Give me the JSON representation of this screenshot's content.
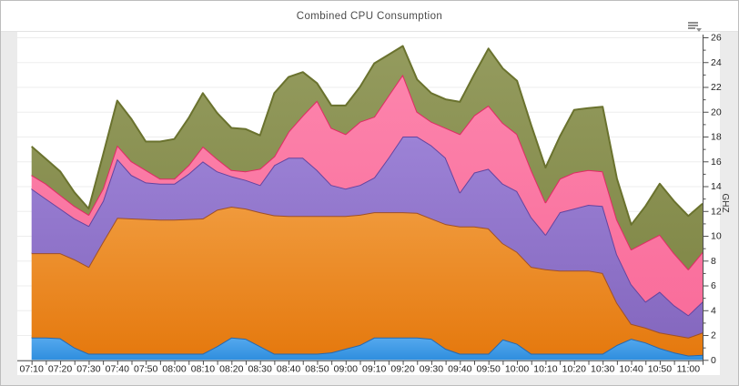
{
  "page": {
    "title": "Combined CPU Consumption"
  },
  "menu": {
    "icon": "context-menu-icon"
  },
  "chart_data": {
    "type": "area",
    "stacked": true,
    "title": "Combined CPU Consumption",
    "xlabel": "",
    "ylabel": "GHZ",
    "ylim": [
      0,
      26
    ],
    "y_tick_step": 2,
    "y_minor_tick_step": 1,
    "y_axis_side": "right",
    "grid": true,
    "legend": "none",
    "x": [
      "07:10",
      "07:15",
      "07:20",
      "07:25",
      "07:30",
      "07:35",
      "07:40",
      "07:45",
      "07:50",
      "07:55",
      "08:00",
      "08:05",
      "08:10",
      "08:15",
      "08:20",
      "08:25",
      "08:30",
      "08:35",
      "08:40",
      "08:45",
      "08:50",
      "08:55",
      "09:00",
      "09:05",
      "09:10",
      "09:15",
      "09:20",
      "09:25",
      "09:30",
      "09:35",
      "09:40",
      "09:45",
      "09:50",
      "09:55",
      "10:00",
      "10:05",
      "10:10",
      "10:15",
      "10:20",
      "10:25",
      "10:30",
      "10:35",
      "10:40",
      "10:45",
      "10:50",
      "10:55",
      "11:00",
      "11:05"
    ],
    "x_tick_labels": [
      "07:10",
      "07:20",
      "07:30",
      "07:40",
      "07:50",
      "08:00",
      "08:10",
      "08:20",
      "08:30",
      "08:40",
      "08:50",
      "09:00",
      "09:10",
      "09:20",
      "09:30",
      "09:40",
      "09:50",
      "10:00",
      "10:10",
      "10:20",
      "10:30",
      "10:40",
      "10:50",
      "11:00"
    ],
    "y_tick_labels": [
      "0",
      "2",
      "4",
      "6",
      "8",
      "10",
      "12",
      "14",
      "16",
      "18",
      "20",
      "22",
      "24",
      "26"
    ],
    "series": [
      {
        "name": "series-blue",
        "color": "#3e9be6",
        "color_top": "#55a9ee",
        "color_bottom": "#2f8ede",
        "stroke": "#2667ad",
        "values": [
          1.8,
          1.8,
          1.75,
          1.0,
          0.5,
          0.5,
          0.5,
          0.5,
          0.5,
          0.5,
          0.5,
          0.5,
          0.5,
          1.1,
          1.8,
          1.7,
          1.1,
          0.5,
          0.5,
          0.5,
          0.5,
          0.6,
          0.9,
          1.2,
          1.8,
          1.8,
          1.8,
          1.8,
          1.7,
          0.9,
          0.5,
          0.5,
          0.5,
          1.65,
          1.3,
          0.5,
          0.5,
          0.5,
          0.5,
          0.5,
          0.5,
          1.2,
          1.7,
          1.4,
          0.95,
          0.6,
          0.35,
          0.4
        ]
      },
      {
        "name": "series-orange",
        "color": "#ec8a24",
        "color_top": "#f09a3c",
        "color_bottom": "#e5790e",
        "stroke": "#9e4f28",
        "values": [
          6.8,
          6.8,
          6.85,
          7.1,
          7.0,
          9.0,
          10.95,
          10.9,
          10.85,
          10.8,
          10.8,
          10.85,
          10.9,
          11.0,
          10.55,
          10.5,
          10.8,
          11.15,
          11.1,
          11.1,
          11.1,
          11.0,
          10.7,
          10.5,
          10.1,
          10.1,
          10.1,
          10.05,
          9.7,
          10.05,
          10.25,
          10.25,
          10.1,
          7.75,
          7.4,
          7.0,
          6.8,
          6.7,
          6.7,
          6.7,
          6.5,
          3.4,
          1.2,
          1.2,
          1.25,
          1.4,
          1.45,
          1.8
        ]
      },
      {
        "name": "series-purple",
        "color": "#9176cb",
        "color_top": "#9c82d6",
        "color_bottom": "#8568bf",
        "stroke": "#64449f",
        "values": [
          5.2,
          4.4,
          3.6,
          3.3,
          3.3,
          3.3,
          4.75,
          3.5,
          2.95,
          2.9,
          2.9,
          3.65,
          4.6,
          3.1,
          2.45,
          2.3,
          2.2,
          4.05,
          4.7,
          4.7,
          3.7,
          2.5,
          2.2,
          2.4,
          2.8,
          4.4,
          6.1,
          6.15,
          5.9,
          5.35,
          2.75,
          4.35,
          4.8,
          4.8,
          4.9,
          4.0,
          2.8,
          4.7,
          5.0,
          5.3,
          5.4,
          3.9,
          3.2,
          2.1,
          3.3,
          2.4,
          1.8,
          2.5
        ]
      },
      {
        "name": "series-pink",
        "color": "#fb78a4",
        "color_top": "#fc84ac",
        "color_bottom": "#f96d9b",
        "stroke": "#e02a64",
        "values": [
          1.1,
          1.2,
          1.1,
          1.0,
          0.9,
          1.0,
          1.1,
          1.1,
          1.0,
          0.4,
          0.4,
          0.7,
          1.2,
          1.0,
          0.5,
          0.7,
          1.3,
          0.7,
          2.1,
          3.4,
          5.6,
          4.6,
          4.4,
          5.1,
          4.9,
          5.0,
          5.0,
          2.0,
          1.9,
          2.4,
          4.7,
          4.6,
          5.1,
          4.9,
          4.6,
          3.8,
          2.6,
          2.7,
          2.9,
          2.8,
          2.8,
          2.8,
          2.8,
          4.8,
          4.6,
          4.2,
          3.7,
          4.0
        ]
      },
      {
        "name": "series-olive",
        "color": "#8b9253",
        "color_top": "#949b5e",
        "color_bottom": "#828949",
        "stroke": "#6a722e",
        "values": [
          2.3,
          2.0,
          1.9,
          1.1,
          0.5,
          2.7,
          3.6,
          3.4,
          2.3,
          3.0,
          3.2,
          3.8,
          4.3,
          3.7,
          3.4,
          3.4,
          2.7,
          5.1,
          4.4,
          3.5,
          1.4,
          1.8,
          2.3,
          2.8,
          4.3,
          3.3,
          2.3,
          2.6,
          2.3,
          2.3,
          2.6,
          3.3,
          4.6,
          4.4,
          4.3,
          3.6,
          2.8,
          3.4,
          5.05,
          5.0,
          5.2,
          3.3,
          2.0,
          2.9,
          4.1,
          4.2,
          4.3,
          3.9
        ]
      }
    ],
    "colors": {
      "page_background": "#ebebeb",
      "plot_background": "#ffffff",
      "gridline": "#ededed",
      "axis_line": "#4d4d4d",
      "tick_label": "#1f1f1f",
      "axis_title": "#333333",
      "chart_title": "#4a4a4a",
      "border": "#bdbdbd"
    }
  }
}
